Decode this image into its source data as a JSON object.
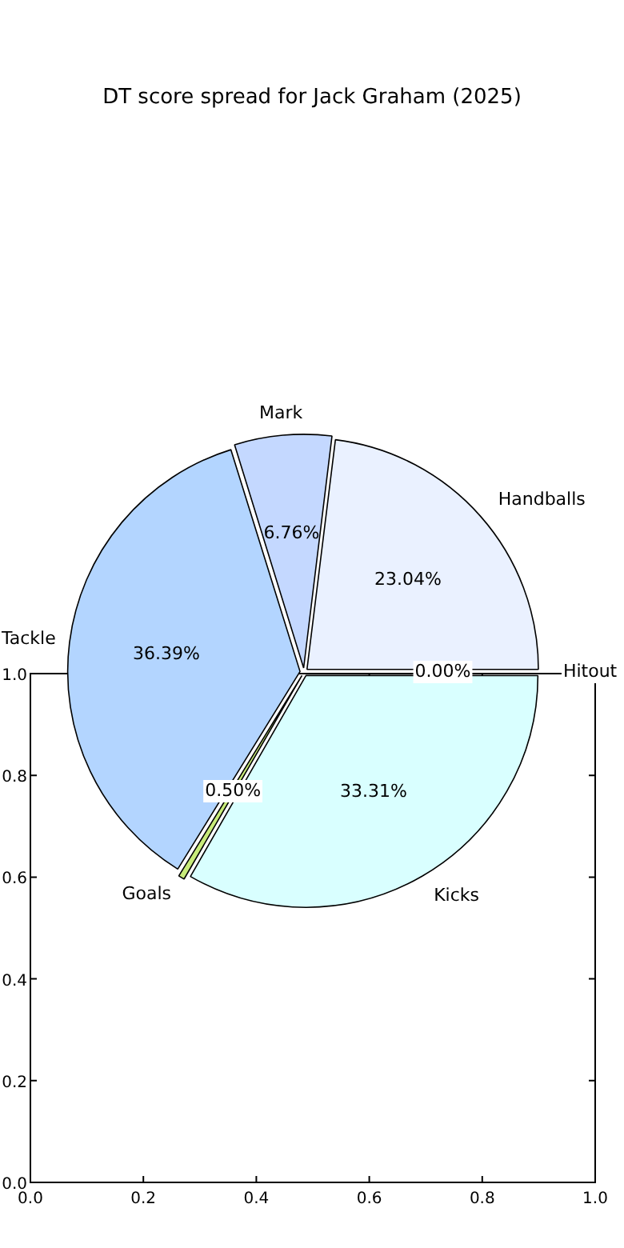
{
  "chart_data": {
    "type": "pie",
    "title": "DT score spread for Jack Graham (2025)",
    "categories": [
      "Hitout",
      "Kicks",
      "Goals",
      "Tackle",
      "Mark",
      "Handballs"
    ],
    "values": [
      0.0,
      33.31,
      0.5,
      36.39,
      6.76,
      23.04
    ],
    "colors": [
      "#e0e0e0",
      "#d9ffff",
      "#c8eb7a",
      "#b3d5ff",
      "#c4d8ff",
      "#eaf1ff"
    ],
    "value_labels": [
      "0.00%",
      "33.31%",
      "0.50%",
      "36.39%",
      "6.76%",
      "23.04%"
    ],
    "annotations": [
      "0.0",
      "0.2",
      "0.4",
      "0.6",
      "0.8",
      "1.0",
      "0.0",
      "0.2",
      "0.4",
      "0.6",
      "0.8",
      "1.0"
    ],
    "legend": false
  }
}
